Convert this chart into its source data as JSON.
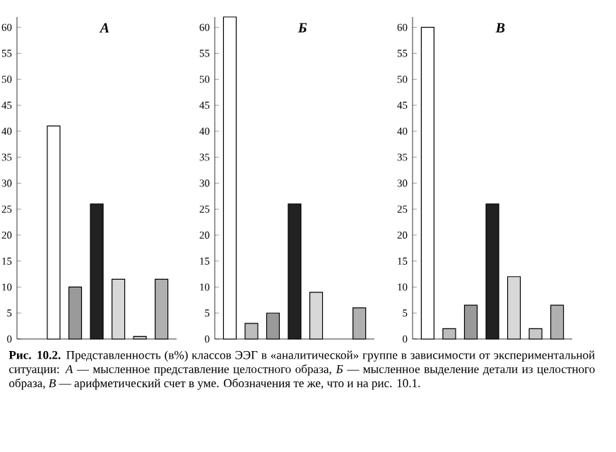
{
  "chart_data": [
    {
      "type": "bar",
      "title": "*А*",
      "categories": [
        null,
        null,
        null,
        null,
        null,
        null,
        null
      ],
      "values": [
        null,
        41,
        10,
        26,
        11.5,
        0.5,
        11.5
      ],
      "colors": [
        "#ffffff",
        "#ffffff",
        "#9a9a9a",
        "#222222",
        "#d8d8d8",
        "#c8c8c8",
        "#b0b0b0"
      ],
      "ylim": [
        0,
        62
      ],
      "yticks": [
        0,
        5,
        10,
        15,
        20,
        25,
        30,
        35,
        40,
        45,
        50,
        55,
        60
      ],
      "tick_labels": "y",
      "annotations": [
        "**Рис. 10.2.** Представленность (в%) классов ЭЭГ в «аналитической» группе в зависимости от экспериментальной ситуации: *А* — мысленное представление целостного образа, *Б* — мысленное выделение детали из целостного образа, *В* — арифметический счет в уме. Обозначения те же, что и на рис. 10.1."
      ]
    },
    {
      "type": "bar",
      "title": "*Б*",
      "categories": [
        null,
        null,
        null,
        null,
        null,
        null,
        null
      ],
      "values": [
        62,
        3,
        5,
        26,
        9,
        null,
        6
      ],
      "colors": [
        "#ffffff",
        "#bdbdbd",
        "#9a9a9a",
        "#222222",
        "#d8d8d8",
        "#c8c8c8",
        "#b0b0b0"
      ],
      "ylim": [
        0,
        62
      ],
      "yticks": [
        0,
        5,
        10,
        15,
        20,
        25,
        30,
        35,
        40,
        45,
        50,
        55,
        60
      ],
      "tick_labels": "y"
    },
    {
      "type": "bar",
      "title": "*В*",
      "categories": [
        null,
        null,
        null,
        null,
        null,
        null,
        null
      ],
      "values": [
        60,
        2,
        6.5,
        26,
        12,
        2,
        6.5
      ],
      "colors": [
        "#ffffff",
        "#bdbdbd",
        "#9a9a9a",
        "#222222",
        "#d8d8d8",
        "#c8c8c8",
        "#b0b0b0"
      ],
      "ylim": [
        0,
        62
      ],
      "yticks": [
        0,
        5,
        10,
        15,
        20,
        25,
        30,
        35,
        40,
        45,
        50,
        55,
        60
      ],
      "tick_labels": "y"
    }
  ]
}
